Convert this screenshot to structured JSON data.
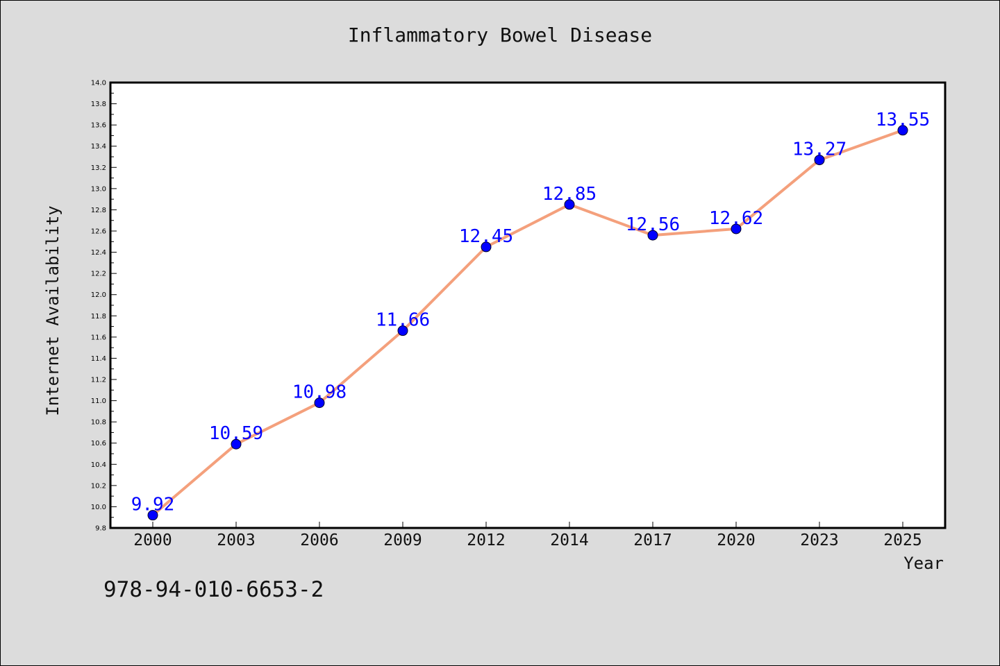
{
  "chart_data": {
    "type": "line",
    "title": "Inflammatory Bowel Disease",
    "xlabel": "Year",
    "ylabel": "Internet Availability",
    "categories": [
      "2000",
      "2003",
      "2006",
      "2009",
      "2012",
      "2014",
      "2017",
      "2020",
      "2023",
      "2025"
    ],
    "series": [
      {
        "values": [
          9.92,
          10.59,
          10.98,
          11.66,
          12.45,
          12.85,
          12.56,
          12.62,
          13.27,
          13.55
        ]
      }
    ],
    "data_labels": [
      "9.92",
      "10.59",
      "10.98",
      "11.66",
      "12.45",
      "12.85",
      "12.56",
      "12.62",
      "13.27",
      "13.55"
    ],
    "ylim": [
      9.8,
      14.0
    ],
    "yticks": [
      "9.8",
      "10.0",
      "10.2",
      "10.4",
      "10.6",
      "10.8",
      "11.0",
      "11.2",
      "11.4",
      "11.6",
      "11.8",
      "12.0",
      "12.2",
      "12.4",
      "12.6",
      "12.8",
      "13.0",
      "13.2",
      "13.4",
      "13.6",
      "13.8",
      "14.0"
    ],
    "grid": false,
    "colors": {
      "line": "#f4a07c",
      "marker": "#0000ff",
      "labels": "#0000ff",
      "plot_background": "#ffffff",
      "page_background": "#dcdcdc"
    }
  },
  "footer": {
    "isbn": "978-94-010-6653-2"
  }
}
